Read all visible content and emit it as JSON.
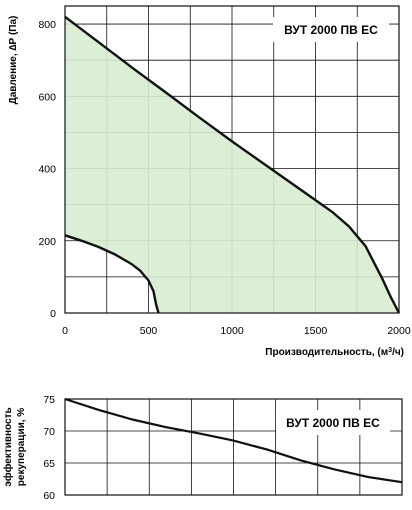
{
  "chart_data": [
    {
      "type": "area",
      "title": "ВУТ 2000 ПВ ЕС",
      "xlabel_prefix": "Производительность, (м",
      "xlabel_sup": "3",
      "xlabel_suffix": "/ч)",
      "ylabel": "Давление, ∆Р (Па)",
      "xlim": [
        0,
        2000
      ],
      "ylim": [
        0,
        850
      ],
      "x_ticks": [
        0,
        500,
        1000,
        1500,
        2000
      ],
      "y_ticks": [
        0,
        200,
        400,
        600,
        800
      ],
      "grid": true,
      "fill_color": "#d8ecd0",
      "series": [
        {
          "role": "max",
          "x": [
            0,
            200,
            400,
            600,
            800,
            1000,
            1200,
            1400,
            1600,
            1700,
            1800,
            1850,
            1900,
            1950,
            2000
          ],
          "y": [
            820,
            750,
            680,
            612,
            543,
            475,
            410,
            345,
            280,
            240,
            185,
            140,
            95,
            45,
            0
          ]
        },
        {
          "role": "min",
          "x": [
            0,
            100,
            200,
            300,
            400,
            450,
            500,
            530,
            545,
            560
          ],
          "y": [
            215,
            200,
            183,
            162,
            135,
            117,
            90,
            60,
            25,
            0
          ]
        }
      ]
    },
    {
      "type": "line",
      "title": "ВУТ 2000 ПВ ЕС",
      "ylabel_line1": "эффективность",
      "ylabel_line2": "рекуперации, %",
      "xlim": [
        0,
        2000
      ],
      "ylim": [
        60,
        75
      ],
      "y_ticks": [
        60,
        65,
        70,
        75
      ],
      "x_grid": [
        0,
        250,
        500,
        750,
        1000,
        1250,
        1500,
        1750,
        2000
      ],
      "grid": true,
      "series": [
        {
          "x": [
            0,
            200,
            400,
            600,
            800,
            1000,
            1200,
            1400,
            1600,
            1800,
            2000
          ],
          "y": [
            75,
            73.3,
            71.8,
            70.6,
            69.6,
            68.5,
            67.1,
            65.4,
            64,
            62.8,
            62
          ]
        }
      ]
    }
  ]
}
